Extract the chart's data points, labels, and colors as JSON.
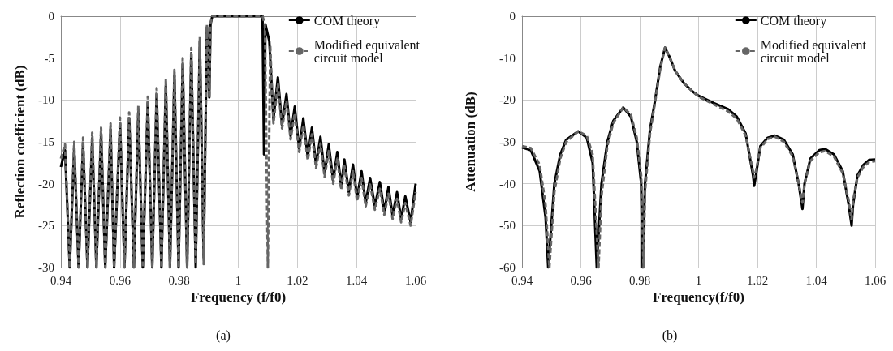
{
  "chart_data": [
    {
      "type": "line",
      "xlabel": "Frequency (f/f0)",
      "ylabel": "Reflection coefficient (dB)",
      "annotations": [
        "(a)"
      ],
      "xlim": [
        0.94,
        1.06
      ],
      "xticks": [
        0.94,
        0.96,
        0.98,
        1,
        1.02,
        1.04,
        1.06
      ],
      "ylim": [
        -30,
        0
      ],
      "yticks": [
        -30,
        -25,
        -20,
        -15,
        -10,
        -5,
        0
      ],
      "grid": true,
      "legend": "top right",
      "marker": "none",
      "series": [
        {
          "name": "COM theory",
          "color": "#000000",
          "line_style": "solid",
          "x": [
            0.94,
            0.9414,
            0.943,
            0.9445,
            0.946,
            0.9475,
            0.949,
            0.9506,
            0.952,
            0.9536,
            0.955,
            0.9568,
            0.958,
            0.96,
            0.9615,
            0.9631,
            0.9647,
            0.9662,
            0.9677,
            0.9694,
            0.9709,
            0.9724,
            0.974,
            0.9755,
            0.9769,
            0.9784,
            0.9798,
            0.9812,
            0.9827,
            0.9841,
            0.9856,
            0.987,
            0.9883,
            0.9894,
            0.9902,
            0.9906,
            0.9912,
            1.0082,
            1.0087,
            1.0092,
            1.0105,
            1.0119,
            1.0134,
            1.0148,
            1.0163,
            1.0177,
            1.0191,
            1.0206,
            1.022,
            1.0235,
            1.0249,
            1.0263,
            1.0278,
            1.0292,
            1.0306,
            1.0321,
            1.0335,
            1.0348,
            1.0359,
            1.0374,
            1.0388,
            1.0402,
            1.0417,
            1.0431,
            1.0446,
            1.0462,
            1.0479,
            1.0494,
            1.0508,
            1.0522,
            1.0537,
            1.0551,
            1.0565,
            1.0583,
            1.06
          ],
          "values": [
            -18,
            -16,
            -30,
            -15.7,
            -30,
            -15.2,
            -30,
            -14.6,
            -30,
            -14,
            -30,
            -13.5,
            -30,
            -12.8,
            -30,
            -12.2,
            -30,
            -11.4,
            -30,
            -10.3,
            -30,
            -9.3,
            -30,
            -8.2,
            -30,
            -7.1,
            -30,
            -5.7,
            -30,
            -4.4,
            -30,
            -3,
            -28.8,
            -1.3,
            -9.7,
            -1,
            0,
            0,
            -16.5,
            -1,
            -3,
            -12.3,
            -7.3,
            -13,
            -9.3,
            -14.3,
            -10.8,
            -15.8,
            -12.2,
            -16.8,
            -13.3,
            -17.7,
            -14.4,
            -18.8,
            -15.3,
            -19.6,
            -16.2,
            -20.3,
            -17.1,
            -21,
            -17.7,
            -21.7,
            -18.5,
            -22.3,
            -19.3,
            -22.7,
            -19.8,
            -23.3,
            -20.4,
            -23.8,
            -21,
            -24.2,
            -21.5,
            -24.6,
            -20
          ]
        },
        {
          "name": "Modified equivalent circuit model",
          "color": "#666666",
          "line_style": "dashed",
          "x": [
            0.94,
            0.9414,
            0.943,
            0.9445,
            0.946,
            0.9475,
            0.949,
            0.9506,
            0.952,
            0.9536,
            0.955,
            0.9568,
            0.958,
            0.96,
            0.9615,
            0.9631,
            0.9647,
            0.9662,
            0.9677,
            0.9694,
            0.9709,
            0.9724,
            0.974,
            0.9755,
            0.9769,
            0.9784,
            0.9798,
            0.9812,
            0.9827,
            0.9841,
            0.9856,
            0.987,
            0.9883,
            0.9894,
            0.9902,
            0.9906,
            0.9912,
            1.0082,
            1.009,
            1.01,
            1.0108,
            1.0119,
            1.0134,
            1.0148,
            1.0163,
            1.0177,
            1.0191,
            1.0206,
            1.022,
            1.0235,
            1.0249,
            1.0263,
            1.0278,
            1.0292,
            1.0306,
            1.0321,
            1.0335,
            1.0348,
            1.0359,
            1.0374,
            1.0388,
            1.0402,
            1.0417,
            1.0431,
            1.0446,
            1.0462,
            1.0479,
            1.0494,
            1.0508,
            1.0522,
            1.0537,
            1.0551,
            1.0565,
            1.0583,
            1.06
          ],
          "values": [
            -17,
            -15.3,
            -30,
            -15,
            -30,
            -14.5,
            -30,
            -13.9,
            -30,
            -13.3,
            -30,
            -12.8,
            -30,
            -12.1,
            -30,
            -11.5,
            -30,
            -10.7,
            -30,
            -9.6,
            -30,
            -8.6,
            -30,
            -7.5,
            -30,
            -6.4,
            -30,
            -5,
            -30,
            -3.8,
            -29.6,
            -2.5,
            -29.6,
            -1,
            -9.7,
            -0.8,
            0,
            0,
            -1,
            -30,
            -3.5,
            -12.8,
            -8.1,
            -13.4,
            -10.1,
            -14.7,
            -11.6,
            -16.2,
            -13,
            -17.2,
            -14.1,
            -18.1,
            -15.2,
            -19.2,
            -16.1,
            -20,
            -17,
            -20.7,
            -17.9,
            -21.4,
            -18.5,
            -22.1,
            -19.3,
            -22.7,
            -20.1,
            -23.1,
            -20.6,
            -23.7,
            -21.2,
            -24.2,
            -21.8,
            -24.6,
            -22.3,
            -25,
            -21
          ]
        }
      ]
    },
    {
      "type": "line",
      "xlabel": "Frequency(f/f0)",
      "ylabel": "Attenuation (dB)",
      "annotations": [
        "(b)"
      ],
      "xlim": [
        0.94,
        1.06
      ],
      "xticks": [
        0.94,
        0.96,
        0.98,
        1,
        1.02,
        1.04,
        1.06
      ],
      "ylim": [
        -60,
        0
      ],
      "yticks": [
        -60,
        -50,
        -40,
        -30,
        -20,
        -10,
        0
      ],
      "grid": true,
      "legend": "top right",
      "marker": "none",
      "series": [
        {
          "name": "COM theory",
          "color": "#000000",
          "line_style": "solid",
          "x": [
            0.94,
            0.943,
            0.946,
            0.948,
            0.9489,
            0.951,
            0.953,
            0.955,
            0.9591,
            0.962,
            0.964,
            0.9654,
            0.967,
            0.969,
            0.971,
            0.9744,
            0.977,
            0.979,
            0.9805,
            0.981,
            0.9818,
            0.9835,
            0.985,
            0.987,
            0.9886,
            0.99,
            0.992,
            0.995,
            0.998,
            1.0,
            1.005,
            1.01,
            1.013,
            1.016,
            1.0185,
            1.0189,
            1.0195,
            1.021,
            1.0235,
            1.026,
            1.029,
            1.032,
            1.034,
            1.0353,
            1.036,
            1.038,
            1.041,
            1.043,
            1.046,
            1.049,
            1.051,
            1.052,
            1.0525,
            1.054,
            1.056,
            1.058,
            1.06
          ],
          "values": [
            -31.3,
            -32,
            -37,
            -48,
            -60,
            -40,
            -33,
            -29.5,
            -27.5,
            -29,
            -35,
            -60,
            -40,
            -30,
            -25,
            -21.8,
            -24,
            -30,
            -40,
            -60,
            -40,
            -27,
            -21,
            -12,
            -7.5,
            -9.5,
            -13,
            -16,
            -18,
            -19,
            -20.7,
            -22.2,
            -24,
            -28,
            -38,
            -40.5,
            -38,
            -31,
            -29,
            -28.5,
            -29.5,
            -33,
            -40,
            -46,
            -40,
            -34,
            -32,
            -31.7,
            -33,
            -37,
            -45,
            -50,
            -45,
            -38,
            -35.5,
            -34.3,
            -34.2
          ]
        },
        {
          "name": "Modified equivalent circuit model",
          "color": "#666666",
          "line_style": "dashed",
          "x": [
            0.94,
            0.943,
            0.946,
            0.948,
            0.9493,
            0.951,
            0.953,
            0.955,
            0.9591,
            0.962,
            0.964,
            0.966,
            0.967,
            0.969,
            0.971,
            0.9744,
            0.977,
            0.979,
            0.9805,
            0.9813,
            0.9818,
            0.9835,
            0.985,
            0.987,
            0.9886,
            0.99,
            0.992,
            0.995,
            0.998,
            1.0,
            1.005,
            1.01,
            1.013,
            1.016,
            1.0185,
            1.0189,
            1.0195,
            1.021,
            1.0235,
            1.026,
            1.029,
            1.032,
            1.034,
            1.0353,
            1.036,
            1.038,
            1.041,
            1.043,
            1.046,
            1.049,
            1.051,
            1.052,
            1.0525,
            1.054,
            1.056,
            1.058,
            1.06
          ],
          "values": [
            -31,
            -31.5,
            -35.5,
            -45,
            -60,
            -42,
            -34,
            -30,
            -27.5,
            -28.5,
            -33,
            -60,
            -43,
            -31,
            -25.5,
            -21.8,
            -23.5,
            -29,
            -38,
            -60,
            -42,
            -28,
            -21.5,
            -12.5,
            -7.5,
            -9.5,
            -13,
            -16,
            -18,
            -19.2,
            -21,
            -22.7,
            -24.5,
            -28.5,
            -37,
            -38.5,
            -37,
            -31.5,
            -29.3,
            -28.8,
            -30,
            -33.5,
            -40,
            -44.5,
            -40,
            -34.5,
            -32.5,
            -32.2,
            -33.5,
            -37.5,
            -44,
            -48.5,
            -44,
            -38.5,
            -36,
            -34.8,
            -34.6
          ]
        }
      ]
    }
  ]
}
